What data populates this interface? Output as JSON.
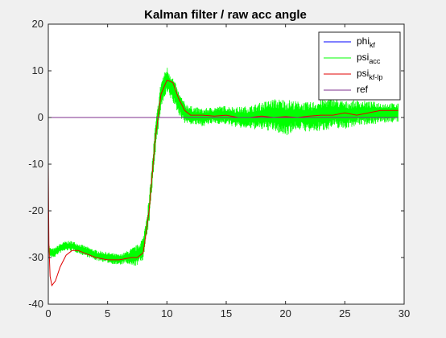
{
  "chart_data": {
    "type": "line",
    "title": "Kalman filter / raw acc angle",
    "xlabel": "",
    "ylabel": "",
    "xlim": [
      0,
      30
    ],
    "ylim": [
      -40,
      20
    ],
    "xticks": [
      0,
      5,
      10,
      15,
      20,
      25,
      30
    ],
    "yticks": [
      -40,
      -30,
      -20,
      -10,
      0,
      10,
      20
    ],
    "grid": false,
    "legend_position": "top-right",
    "series": [
      {
        "name": "phi",
        "name_sub": "kf",
        "color": "#0000ff",
        "x": [
          0,
          29.5
        ],
        "y": [
          0,
          0
        ]
      },
      {
        "name": "psi",
        "name_sub": "acc",
        "color": "#00ff00",
        "noise_amplitude": [
          [
            0,
            1.0
          ],
          [
            6.5,
            1.2
          ],
          [
            7.0,
            2.0
          ],
          [
            8.0,
            2.5
          ],
          [
            9.0,
            3.0
          ],
          [
            10.0,
            3.0
          ],
          [
            11.0,
            2.5
          ],
          [
            12.0,
            2.0
          ],
          [
            14.0,
            1.8
          ],
          [
            17.0,
            2.5
          ],
          [
            19.0,
            3.5
          ],
          [
            20.0,
            4.0
          ],
          [
            21.0,
            3.0
          ],
          [
            23.0,
            3.5
          ],
          [
            25.0,
            3.0
          ],
          [
            27.0,
            2.5
          ],
          [
            29.5,
            2.0
          ]
        ],
        "x": [
          0,
          0.2,
          0.5,
          1.0,
          1.5,
          2.0,
          2.5,
          3.0,
          4.0,
          5.0,
          6.0,
          6.5,
          7.0,
          7.5,
          8.0,
          8.5,
          9.0,
          9.5,
          10.0,
          10.5,
          11.0,
          11.5,
          12.0,
          13.0,
          14.0,
          15.0,
          16.0,
          17.0,
          18.0,
          19.0,
          20.0,
          21.0,
          22.0,
          23.0,
          24.0,
          25.0,
          26.0,
          27.0,
          28.0,
          29.0,
          29.5
        ],
        "y": [
          -28,
          -29,
          -29,
          -28,
          -27.5,
          -27.5,
          -28,
          -28.5,
          -29.5,
          -30,
          -30.5,
          -30,
          -30,
          -29.5,
          -28,
          -20,
          -5,
          5,
          8,
          6,
          3,
          1,
          0.5,
          0,
          0.5,
          0.5,
          0,
          0,
          0.3,
          0.5,
          0,
          0.5,
          0,
          0.5,
          1,
          0.5,
          1,
          1,
          1,
          1,
          1
        ]
      },
      {
        "name": "psi",
        "name_sub": "kf-lp",
        "color": "#e00000",
        "x": [
          0,
          0.05,
          0.15,
          0.3,
          0.6,
          1.0,
          1.5,
          2.0,
          2.5,
          3.0,
          4.0,
          5.0,
          6.0,
          7.0,
          7.5,
          8.0,
          8.5,
          9.0,
          9.5,
          10.0,
          10.5,
          11.0,
          11.5,
          12.0,
          13.0,
          14.0,
          15.0,
          16.0,
          17.0,
          18.0,
          19.0,
          20.0,
          21.0,
          22.0,
          23.0,
          24.0,
          25.0,
          26.0,
          27.0,
          28.0,
          29.0,
          29.5
        ],
        "y": [
          -10,
          -27,
          -34,
          -36,
          -35,
          -32,
          -29.5,
          -28.5,
          -28.5,
          -29,
          -30,
          -30.5,
          -30.5,
          -30,
          -30,
          -29,
          -20,
          -5,
          5,
          8,
          7.5,
          4,
          1.5,
          0.5,
          0.5,
          0.3,
          0.5,
          0,
          0,
          0.3,
          0,
          0.2,
          0,
          0.3,
          0.5,
          0.5,
          1,
          0.5,
          1,
          1.5,
          1.5,
          1.5
        ]
      },
      {
        "name": "ref",
        "name_sub": "",
        "color": "#7e2f8e",
        "x": [
          0,
          29.5
        ],
        "y": [
          0,
          0
        ]
      }
    ]
  }
}
